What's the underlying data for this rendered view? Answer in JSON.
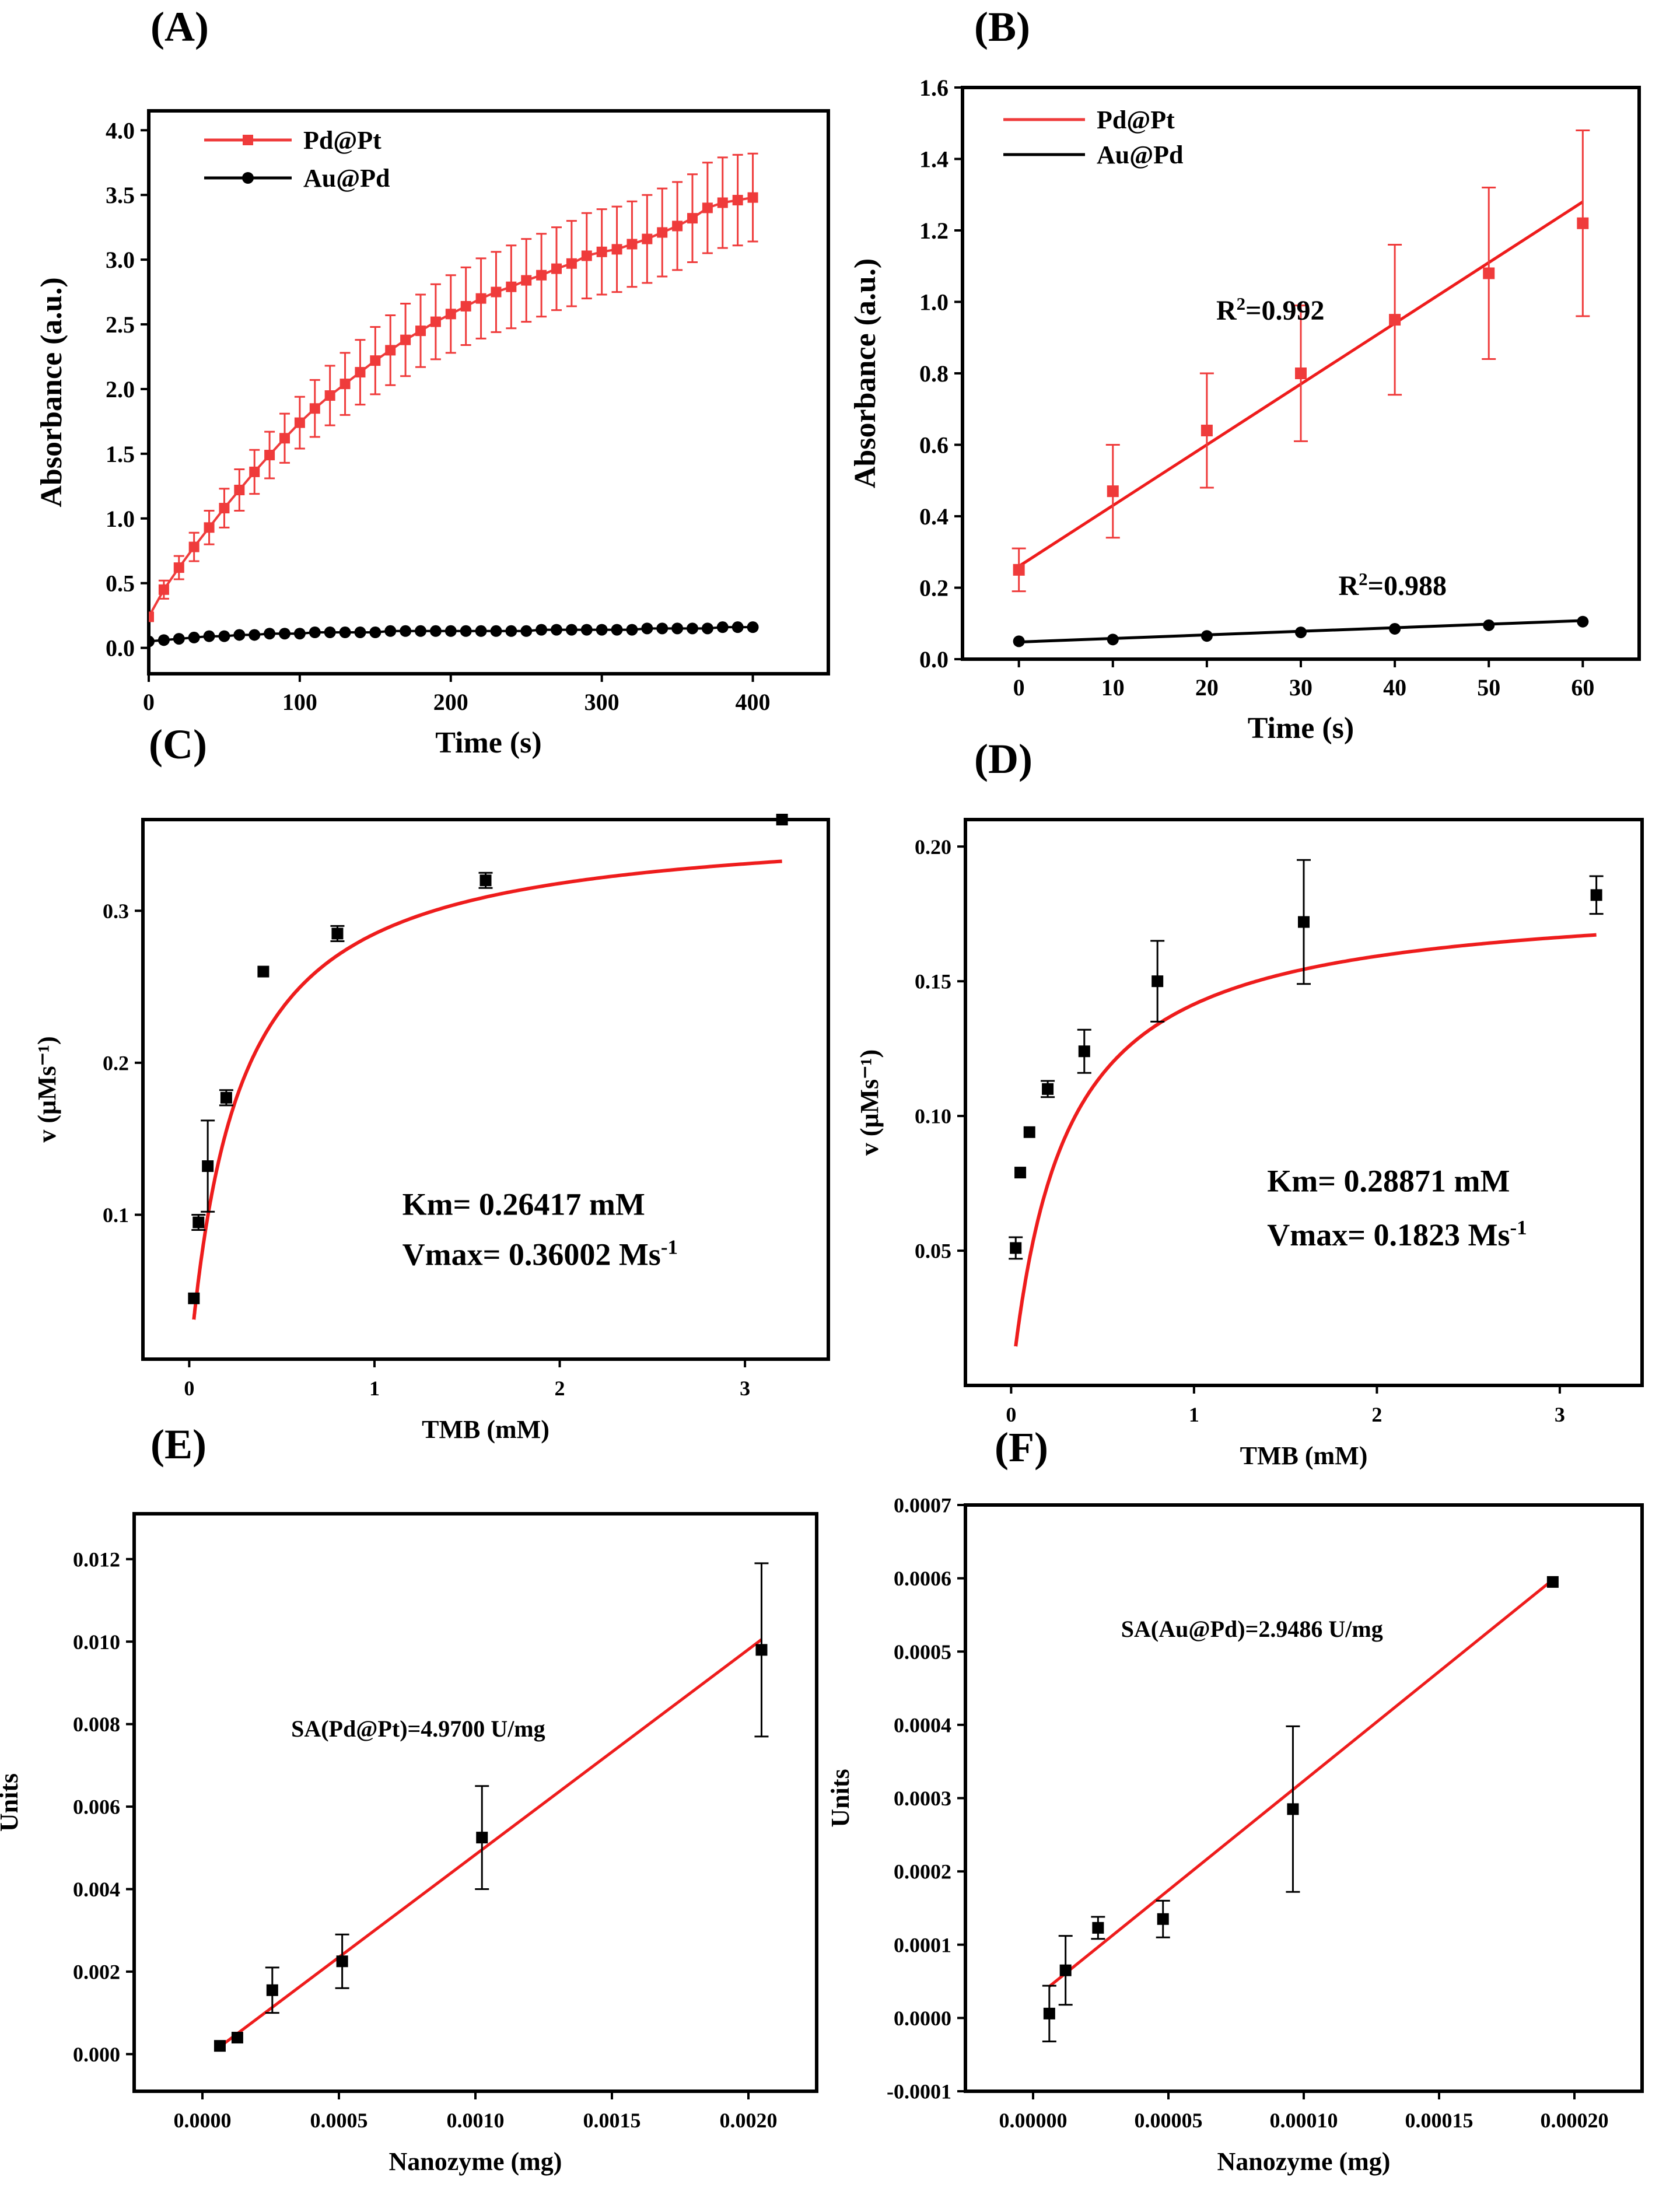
{
  "colors": {
    "pd_pt": "#ef3b3b",
    "au_pd": "#000000",
    "fit": "#ee1c1c",
    "marker": "#000000"
  },
  "chart_data": [
    {
      "panel": "(A)",
      "type": "line",
      "xlabel": "Time (s)",
      "ylabel": "Absorbance (a.u.)",
      "xlim": [
        0,
        450
      ],
      "ylim": [
        -0.2,
        4.15
      ],
      "xticks": [
        0,
        100,
        200,
        300,
        400
      ],
      "yticks": [
        0.0,
        0.5,
        1.0,
        1.5,
        2.0,
        2.5,
        3.0,
        3.5,
        4.0
      ],
      "legend": "top-left",
      "series": [
        {
          "name": "Pd@Pt",
          "marker": "square",
          "x": [
            0,
            10,
            20,
            30,
            40,
            50,
            60,
            70,
            80,
            90,
            100,
            110,
            120,
            130,
            140,
            150,
            160,
            170,
            180,
            190,
            200,
            210,
            220,
            230,
            240,
            250,
            260,
            270,
            280,
            290,
            300,
            310,
            320,
            330,
            340,
            350,
            360,
            370,
            380,
            390,
            400
          ],
          "y": [
            0.24,
            0.45,
            0.62,
            0.78,
            0.93,
            1.08,
            1.22,
            1.36,
            1.49,
            1.62,
            1.74,
            1.85,
            1.95,
            2.04,
            2.13,
            2.22,
            2.3,
            2.38,
            2.45,
            2.52,
            2.58,
            2.64,
            2.7,
            2.75,
            2.79,
            2.84,
            2.88,
            2.93,
            2.97,
            3.03,
            3.06,
            3.08,
            3.12,
            3.16,
            3.21,
            3.26,
            3.32,
            3.4,
            3.44,
            3.46,
            3.48
          ],
          "err": [
            0.03,
            0.07,
            0.09,
            0.11,
            0.13,
            0.15,
            0.16,
            0.17,
            0.18,
            0.19,
            0.2,
            0.22,
            0.23,
            0.24,
            0.25,
            0.26,
            0.27,
            0.28,
            0.28,
            0.29,
            0.3,
            0.3,
            0.31,
            0.31,
            0.32,
            0.32,
            0.32,
            0.32,
            0.33,
            0.33,
            0.33,
            0.33,
            0.33,
            0.34,
            0.34,
            0.34,
            0.34,
            0.35,
            0.35,
            0.35,
            0.34
          ]
        },
        {
          "name": "Au@Pd",
          "marker": "circle",
          "x": [
            0,
            10,
            20,
            30,
            40,
            50,
            60,
            70,
            80,
            90,
            100,
            110,
            120,
            130,
            140,
            150,
            160,
            170,
            180,
            190,
            200,
            210,
            220,
            230,
            240,
            250,
            260,
            270,
            280,
            290,
            300,
            310,
            320,
            330,
            340,
            350,
            360,
            370,
            380,
            390,
            400
          ],
          "y": [
            0.05,
            0.06,
            0.07,
            0.08,
            0.09,
            0.09,
            0.1,
            0.1,
            0.11,
            0.11,
            0.11,
            0.12,
            0.12,
            0.12,
            0.12,
            0.12,
            0.13,
            0.13,
            0.13,
            0.13,
            0.13,
            0.13,
            0.13,
            0.13,
            0.13,
            0.13,
            0.14,
            0.14,
            0.14,
            0.14,
            0.14,
            0.14,
            0.14,
            0.15,
            0.15,
            0.15,
            0.15,
            0.15,
            0.16,
            0.16,
            0.16
          ]
        }
      ]
    },
    {
      "panel": "(B)",
      "type": "scatter",
      "xlabel": "Time (s)",
      "ylabel": "Absorbance (a.u.)",
      "xlim": [
        -6,
        66
      ],
      "ylim": [
        0.0,
        1.6
      ],
      "xticks": [
        0,
        10,
        20,
        30,
        40,
        50,
        60
      ],
      "yticks": [
        0.0,
        0.2,
        0.4,
        0.6,
        0.8,
        1.0,
        1.2,
        1.4,
        1.6
      ],
      "legend": "top-left",
      "annotations": [
        {
          "text": "R²=0.992",
          "x": 21,
          "y": 0.95
        },
        {
          "text": "R²=0.988",
          "x": 34,
          "y": 0.18
        }
      ],
      "series": [
        {
          "name": "Pd@Pt",
          "marker": "square",
          "x": [
            0,
            10,
            20,
            30,
            40,
            50,
            60
          ],
          "y": [
            0.25,
            0.47,
            0.64,
            0.8,
            0.95,
            1.08,
            1.22
          ],
          "err": [
            0.06,
            0.13,
            0.16,
            0.19,
            0.21,
            0.24,
            0.26
          ],
          "fit": [
            0.26,
            1.28
          ]
        },
        {
          "name": "Au@Pd",
          "marker": "circle",
          "x": [
            0,
            10,
            20,
            30,
            40,
            50,
            60
          ],
          "y": [
            0.05,
            0.055,
            0.065,
            0.075,
            0.085,
            0.095,
            0.105
          ],
          "fit": [
            0.048,
            0.108
          ]
        }
      ]
    },
    {
      "panel": "(C)",
      "type": "scatter",
      "xlabel": "TMB (mM)",
      "ylabel": "v (μMs⁻¹)",
      "xlim": [
        -0.25,
        3.45
      ],
      "ylim": [
        0.005,
        0.36
      ],
      "xticks": [
        0,
        1,
        2,
        3
      ],
      "yticks": [
        0.1,
        0.2,
        0.3
      ],
      "annotations": [
        {
          "text": "Km= 0.26417 mM",
          "x": 1.15,
          "y": 0.1
        },
        {
          "text": "Vmax= 0.36002 Ms⁻¹",
          "x": 1.15,
          "y": 0.067
        }
      ],
      "michaelis_menten": {
        "Km": 0.26417,
        "Vmax": 0.36002,
        "x_start": 0.025,
        "x_end": 3.2
      },
      "series": [
        {
          "marker": "square",
          "x": [
            0.025,
            0.05,
            0.1,
            0.2,
            0.4,
            0.8,
            1.6,
            3.2
          ],
          "y": [
            0.045,
            0.095,
            0.132,
            0.177,
            0.26,
            0.285,
            0.32,
            0.36
          ],
          "err": [
            0,
            0.005,
            0.03,
            0.005,
            0,
            0.005,
            0.005,
            0
          ]
        }
      ]
    },
    {
      "panel": "(D)",
      "type": "scatter",
      "xlabel": "TMB (mM)",
      "ylabel": "v (μMs⁻¹)",
      "xlim": [
        -0.25,
        3.45
      ],
      "ylim": [
        0.0,
        0.21
      ],
      "xticks": [
        0,
        1,
        2,
        3
      ],
      "yticks": [
        0.05,
        0.1,
        0.15,
        0.2
      ],
      "annotations": [
        {
          "text": "Km= 0.28871 mM",
          "x": 1.4,
          "y": 0.072
        },
        {
          "text": "Vmax= 0.1823 Ms⁻¹",
          "x": 1.4,
          "y": 0.052
        }
      ],
      "michaelis_menten": {
        "Km": 0.28871,
        "Vmax": 0.1823,
        "x_start": 0.025,
        "x_end": 3.2
      },
      "series": [
        {
          "marker": "square",
          "x": [
            0.025,
            0.05,
            0.1,
            0.2,
            0.4,
            0.8,
            1.6,
            3.2
          ],
          "y": [
            0.051,
            0.079,
            0.094,
            0.11,
            0.124,
            0.15,
            0.172,
            0.182
          ],
          "err": [
            0.004,
            0,
            0,
            0.003,
            0.008,
            0.015,
            0.023,
            0.007
          ]
        }
      ]
    },
    {
      "panel": "(E)",
      "type": "scatter",
      "xlabel": "Nanozyme (mg)",
      "ylabel": "Units",
      "xlim": [
        -0.00025,
        0.00225
      ],
      "ylim": [
        -0.0009,
        0.0131
      ],
      "xticks": [
        0.0,
        0.0005,
        0.001,
        0.0015,
        0.002
      ],
      "xtick_labels": [
        "0.0000",
        "0.0005",
        "0.0010",
        "0.0015",
        "0.0020"
      ],
      "yticks": [
        0.0,
        0.002,
        0.004,
        0.006,
        0.008,
        0.01,
        0.012
      ],
      "ytick_labels": [
        "0.000",
        "0.002",
        "0.004",
        "0.006",
        "0.008",
        "0.010",
        "0.012"
      ],
      "annotations": [
        {
          "text": "SA(Pd@Pt)=4.9700 U/mg",
          "x": 0.000325,
          "y": 0.0077
        }
      ],
      "series": [
        {
          "marker": "square",
          "x": [
            6.4e-05,
            0.000128,
            0.000256,
            0.000512,
            0.001024,
            0.002048
          ],
          "y": [
            0.0002,
            0.0004,
            0.00155,
            0.00225,
            0.00525,
            0.0098
          ],
          "err": [
            0,
            0,
            0.00055,
            0.00065,
            0.00125,
            0.0021
          ],
          "fit": {
            "x": [
              6.4e-05,
              0.002048
            ],
            "y": [
              0.00018,
              0.01005
            ]
          }
        }
      ]
    },
    {
      "panel": "(F)",
      "type": "scatter",
      "xlabel": "Nanozyme (mg)",
      "ylabel": "Units",
      "xlim": [
        -2.5e-05,
        0.000225
      ],
      "ylim": [
        -0.0001,
        0.0007
      ],
      "xticks": [
        0.0,
        5e-05,
        0.0001,
        0.00015,
        0.0002
      ],
      "xtick_labels": [
        "0.00000",
        "0.00005",
        "0.00010",
        "0.00015",
        "0.00020"
      ],
      "yticks": [
        -0.0001,
        0.0,
        0.0001,
        0.0002,
        0.0003,
        0.0004,
        0.0005,
        0.0006,
        0.0007
      ],
      "ytick_labels": [
        "-0.0001",
        "0.0000",
        "0.0001",
        "0.0002",
        "0.0003",
        "0.0004",
        "0.0005",
        "0.0006",
        "0.0007"
      ],
      "annotations": [
        {
          "text": "SA(Au@Pd)=2.9486 U/mg",
          "x": 3.25e-05,
          "y": 0.00052
        }
      ],
      "series": [
        {
          "marker": "square",
          "x": [
            6e-06,
            1.2e-05,
            2.4e-05,
            4.8e-05,
            9.6e-05,
            0.000192
          ],
          "y": [
            6e-06,
            6.5e-05,
            0.000123,
            0.000135,
            0.000285,
            0.000595
          ],
          "err": [
            3.8e-05,
            4.7e-05,
            1.5e-05,
            2.5e-05,
            0.000113,
            0
          ],
          "fit": {
            "x": [
              6e-06,
              0.000192
            ],
            "y": [
              4.3e-05,
              0.000598
            ]
          }
        }
      ]
    }
  ]
}
